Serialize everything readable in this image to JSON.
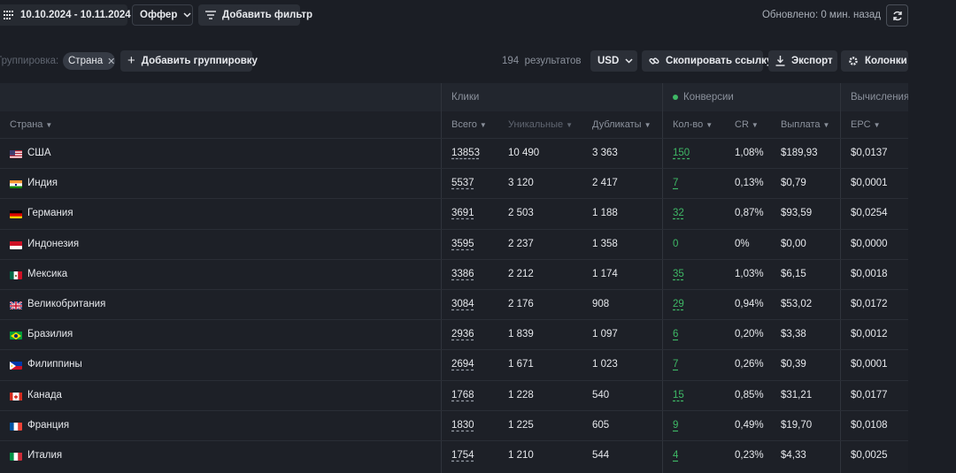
{
  "toolbar": {
    "date_range": "10.10.2024 - 10.11.2024",
    "offer_label": "Оффер",
    "add_filter_label": "Добавить фильтр",
    "updated_text": "Обновлено: 0 мин. назад"
  },
  "grouping": {
    "label": "Группировка:",
    "chip": "Страна",
    "add_label": "Добавить группировку",
    "results_count": "194",
    "results_label": "результатов",
    "currency": "USD",
    "copy_link_label": "Скопировать ссылку",
    "export_label": "Экспорт",
    "columns_label": "Колонки"
  },
  "table": {
    "groups": {
      "clicks": "Клики",
      "conversions": "Конверсии",
      "calcs": "Вычисления"
    },
    "headers": {
      "country": "Страна",
      "total": "Всего",
      "unique": "Уникальные",
      "duplicates": "Дубликаты",
      "count": "Кол-во",
      "cr": "CR",
      "payout": "Выплата",
      "epc": "EPC"
    },
    "rows": [
      {
        "country": "США",
        "flag": "us",
        "total": "13853",
        "unique": "10 490",
        "dup": "3 363",
        "conv": "150",
        "cr": "1,08%",
        "payout": "$189,93",
        "epc": "$0,0137"
      },
      {
        "country": "Индия",
        "flag": "in",
        "total": "5537",
        "unique": "3 120",
        "dup": "2 417",
        "conv": "7",
        "cr": "0,13%",
        "payout": "$0,79",
        "epc": "$0,0001"
      },
      {
        "country": "Германия",
        "flag": "de",
        "total": "3691",
        "unique": "2 503",
        "dup": "1 188",
        "conv": "32",
        "cr": "0,87%",
        "payout": "$93,59",
        "epc": "$0,0254"
      },
      {
        "country": "Индонезия",
        "flag": "id",
        "total": "3595",
        "unique": "2 237",
        "dup": "1 358",
        "conv": "0",
        "cr": "0%",
        "payout": "$0,00",
        "epc": "$0,0000"
      },
      {
        "country": "Мексика",
        "flag": "mx",
        "total": "3386",
        "unique": "2 212",
        "dup": "1 174",
        "conv": "35",
        "cr": "1,03%",
        "payout": "$6,15",
        "epc": "$0,0018"
      },
      {
        "country": "Великобритания",
        "flag": "gb",
        "total": "3084",
        "unique": "2 176",
        "dup": "908",
        "conv": "29",
        "cr": "0,94%",
        "payout": "$53,02",
        "epc": "$0,0172"
      },
      {
        "country": "Бразилия",
        "flag": "br",
        "total": "2936",
        "unique": "1 839",
        "dup": "1 097",
        "conv": "6",
        "cr": "0,20%",
        "payout": "$3,38",
        "epc": "$0,0012"
      },
      {
        "country": "Филиппины",
        "flag": "ph",
        "total": "2694",
        "unique": "1 671",
        "dup": "1 023",
        "conv": "7",
        "cr": "0,26%",
        "payout": "$0,39",
        "epc": "$0,0001"
      },
      {
        "country": "Канада",
        "flag": "ca",
        "total": "1768",
        "unique": "1 228",
        "dup": "540",
        "conv": "15",
        "cr": "0,85%",
        "payout": "$31,21",
        "epc": "$0,0177"
      },
      {
        "country": "Франция",
        "flag": "fr",
        "total": "1830",
        "unique": "1 225",
        "dup": "605",
        "conv": "9",
        "cr": "0,49%",
        "payout": "$19,70",
        "epc": "$0,0108"
      },
      {
        "country": "Италия",
        "flag": "it",
        "total": "1754",
        "unique": "1 210",
        "dup": "544",
        "conv": "4",
        "cr": "0,23%",
        "payout": "$4,33",
        "epc": "$0,0025"
      }
    ]
  }
}
